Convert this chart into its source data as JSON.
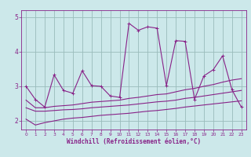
{
  "xlabel": "Windchill (Refroidissement éolien,°C)",
  "bg_color": "#cce8ea",
  "line_color": "#882288",
  "grid_color": "#99bbbb",
  "x": [
    0,
    1,
    2,
    3,
    4,
    5,
    6,
    7,
    8,
    9,
    10,
    11,
    12,
    13,
    14,
    15,
    16,
    17,
    18,
    19,
    20,
    21,
    22,
    23
  ],
  "main_line": [
    3.0,
    2.62,
    2.4,
    3.33,
    2.88,
    2.8,
    3.45,
    3.02,
    3.0,
    2.72,
    2.68,
    4.82,
    4.62,
    4.72,
    4.68,
    3.02,
    4.32,
    4.3,
    2.62,
    3.3,
    3.48,
    3.88,
    2.9,
    2.4
  ],
  "line_upper": [
    2.6,
    2.38,
    2.38,
    2.42,
    2.44,
    2.46,
    2.5,
    2.54,
    2.56,
    2.58,
    2.6,
    2.65,
    2.68,
    2.72,
    2.76,
    2.78,
    2.84,
    2.9,
    2.94,
    3.0,
    3.05,
    3.12,
    3.18,
    3.22
  ],
  "line_mid": [
    2.38,
    2.28,
    2.28,
    2.3,
    2.32,
    2.33,
    2.35,
    2.38,
    2.4,
    2.42,
    2.44,
    2.46,
    2.49,
    2.52,
    2.55,
    2.57,
    2.6,
    2.65,
    2.68,
    2.72,
    2.76,
    2.8,
    2.84,
    2.88
  ],
  "line_lower": [
    2.05,
    1.88,
    1.95,
    2.0,
    2.05,
    2.08,
    2.1,
    2.13,
    2.16,
    2.18,
    2.2,
    2.22,
    2.25,
    2.28,
    2.3,
    2.33,
    2.36,
    2.4,
    2.43,
    2.46,
    2.49,
    2.52,
    2.55,
    2.58
  ],
  "ylim": [
    1.75,
    5.2
  ],
  "yticks": [
    2,
    3,
    4,
    5
  ],
  "xlim": [
    -0.5,
    23.5
  ],
  "xticks": [
    0,
    1,
    2,
    3,
    4,
    5,
    6,
    7,
    8,
    9,
    10,
    11,
    12,
    13,
    14,
    15,
    16,
    17,
    18,
    19,
    20,
    21,
    22,
    23
  ]
}
